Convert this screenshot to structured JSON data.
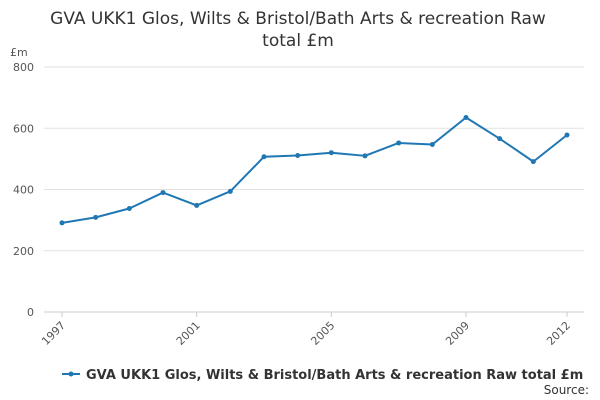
{
  "chart_data": {
    "type": "line",
    "title_lines": [
      "GVA UKK1 Glos, Wilts & Bristol/Bath Arts & recreation Raw",
      "total £m"
    ],
    "yunit": "£m",
    "ylim": [
      0,
      800
    ],
    "yticks": [
      0,
      200,
      400,
      600,
      800
    ],
    "xticks": [
      1997,
      2001,
      2005,
      2009,
      2012
    ],
    "grid": true,
    "legend_position": "bottom",
    "source_label": "Source:",
    "series": [
      {
        "name": "GVA UKK1 Glos, Wilts & Bristol/Bath Arts & recreation Raw total £m",
        "color": "#1f77b4",
        "x": [
          1997,
          1998,
          1999,
          2000,
          2001,
          2002,
          2003,
          2004,
          2005,
          2006,
          2007,
          2008,
          2009,
          2010,
          2011,
          2012
        ],
        "y": [
          291,
          309,
          338,
          390,
          348,
          394,
          507,
          511,
          520,
          510,
          552,
          547,
          635,
          566,
          491,
          578
        ]
      }
    ]
  }
}
